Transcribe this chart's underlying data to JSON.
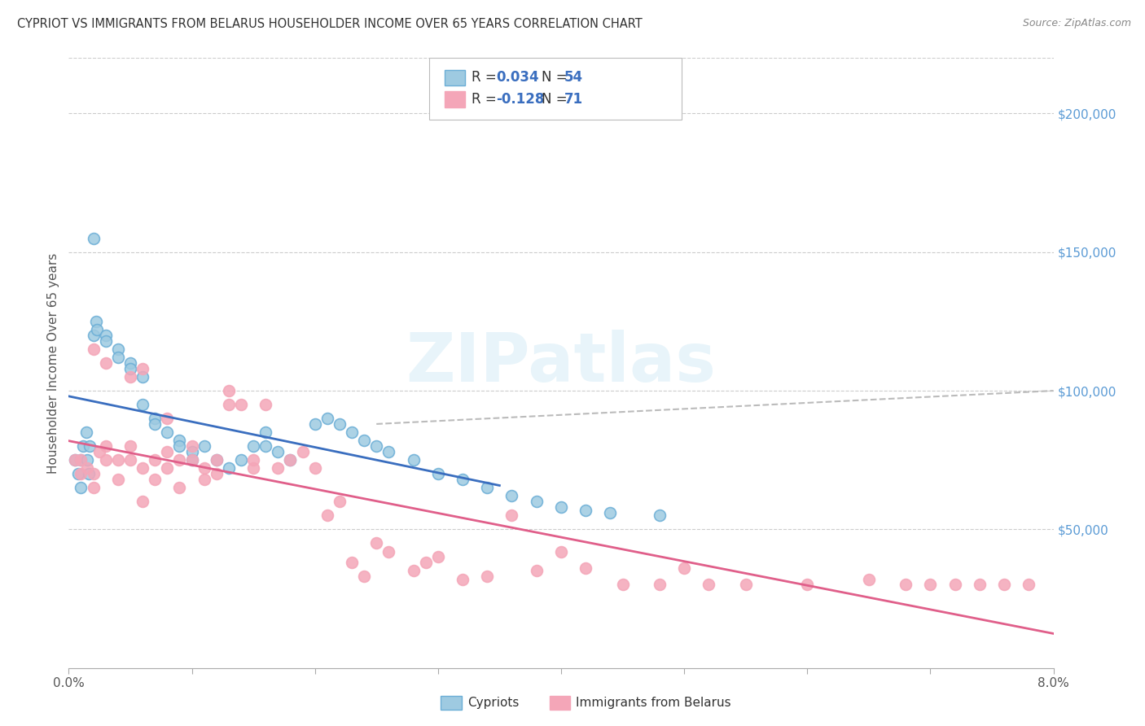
{
  "title": "CYPRIOT VS IMMIGRANTS FROM BELARUS HOUSEHOLDER INCOME OVER 65 YEARS CORRELATION CHART",
  "source": "Source: ZipAtlas.com",
  "ylabel": "Householder Income Over 65 years",
  "xlim": [
    0.0,
    0.08
  ],
  "ylim": [
    0,
    220000
  ],
  "xticks": [
    0.0,
    0.01,
    0.02,
    0.03,
    0.04,
    0.05,
    0.06,
    0.07,
    0.08
  ],
  "xticklabels": [
    "0.0%",
    "",
    "",
    "",
    "",
    "",
    "",
    "",
    "8.0%"
  ],
  "yticks_right": [
    50000,
    100000,
    150000,
    200000
  ],
  "ytick_labels_right": [
    "$50,000",
    "$100,000",
    "$150,000",
    "$200,000"
  ],
  "cypriot_color": "#6baed6",
  "cypriot_face": "#9ecae1",
  "belarus_color": "#f4a6b8",
  "belarus_face": "#f4a6b8",
  "trend1_color": "#3a6ebf",
  "trend2_color": "#e05f8a",
  "trend_dash_color": "#bbbbbb",
  "watermark": "ZIPatlas",
  "background_color": "#ffffff",
  "grid_color": "#cccccc",
  "cypriot_x": [
    0.0005,
    0.0008,
    0.001,
    0.001,
    0.0012,
    0.0014,
    0.0015,
    0.0016,
    0.0017,
    0.002,
    0.002,
    0.0022,
    0.0023,
    0.003,
    0.003,
    0.004,
    0.004,
    0.005,
    0.005,
    0.006,
    0.006,
    0.007,
    0.007,
    0.008,
    0.009,
    0.009,
    0.01,
    0.01,
    0.011,
    0.012,
    0.013,
    0.014,
    0.015,
    0.016,
    0.016,
    0.017,
    0.018,
    0.02,
    0.021,
    0.022,
    0.023,
    0.024,
    0.025,
    0.026,
    0.028,
    0.03,
    0.032,
    0.034,
    0.036,
    0.038,
    0.04,
    0.042,
    0.044,
    0.048
  ],
  "cypriot_y": [
    75000,
    70000,
    65000,
    75000,
    80000,
    85000,
    75000,
    70000,
    80000,
    155000,
    120000,
    125000,
    122000,
    120000,
    118000,
    115000,
    112000,
    110000,
    108000,
    105000,
    95000,
    90000,
    88000,
    85000,
    82000,
    80000,
    78000,
    75000,
    80000,
    75000,
    72000,
    75000,
    80000,
    85000,
    80000,
    78000,
    75000,
    88000,
    90000,
    88000,
    85000,
    82000,
    80000,
    78000,
    75000,
    70000,
    68000,
    65000,
    62000,
    60000,
    58000,
    57000,
    56000,
    55000
  ],
  "belarus_x": [
    0.0005,
    0.001,
    0.001,
    0.0015,
    0.002,
    0.002,
    0.0025,
    0.003,
    0.003,
    0.004,
    0.004,
    0.005,
    0.005,
    0.006,
    0.006,
    0.007,
    0.007,
    0.008,
    0.008,
    0.009,
    0.009,
    0.01,
    0.01,
    0.011,
    0.011,
    0.012,
    0.012,
    0.013,
    0.013,
    0.014,
    0.015,
    0.015,
    0.016,
    0.017,
    0.018,
    0.019,
    0.02,
    0.021,
    0.022,
    0.023,
    0.024,
    0.025,
    0.026,
    0.028,
    0.029,
    0.03,
    0.032,
    0.034,
    0.036,
    0.038,
    0.04,
    0.042,
    0.045,
    0.048,
    0.05,
    0.052,
    0.055,
    0.06,
    0.065,
    0.068,
    0.07,
    0.072,
    0.074,
    0.076,
    0.078,
    0.002,
    0.003,
    0.005,
    0.006,
    0.008
  ],
  "belarus_y": [
    75000,
    70000,
    75000,
    72000,
    65000,
    70000,
    78000,
    80000,
    75000,
    75000,
    68000,
    80000,
    75000,
    60000,
    72000,
    75000,
    68000,
    78000,
    72000,
    65000,
    75000,
    80000,
    75000,
    68000,
    72000,
    75000,
    70000,
    95000,
    100000,
    95000,
    72000,
    75000,
    95000,
    72000,
    75000,
    78000,
    72000,
    55000,
    60000,
    38000,
    33000,
    45000,
    42000,
    35000,
    38000,
    40000,
    32000,
    33000,
    55000,
    35000,
    42000,
    36000,
    30000,
    30000,
    36000,
    30000,
    30000,
    30000,
    32000,
    30000,
    30000,
    30000,
    30000,
    30000,
    30000,
    115000,
    110000,
    105000,
    108000,
    90000
  ]
}
